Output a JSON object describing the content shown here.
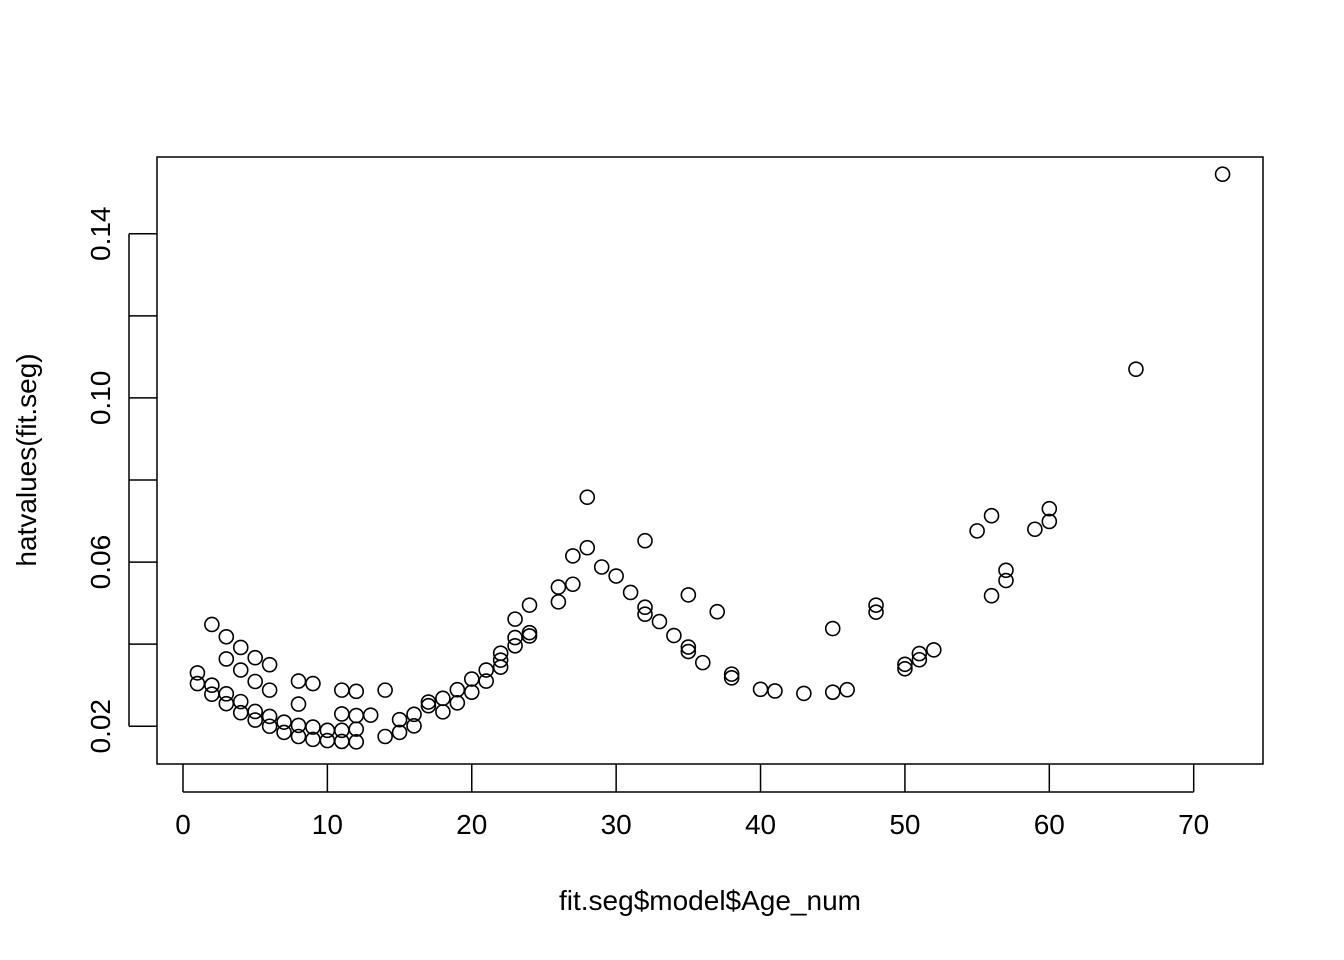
{
  "chart_data": {
    "type": "scatter",
    "title": "",
    "xlabel": "fit.seg$model$Age_num",
    "ylabel": "hatvalues(fit.seg)",
    "xlim": [
      -1.8,
      74.8
    ],
    "ylim": [
      0.0108,
      0.1587
    ],
    "x_ticks": [
      0,
      10,
      20,
      30,
      40,
      50,
      60,
      70
    ],
    "x_tick_labels": [
      "0",
      "10",
      "20",
      "30",
      "40",
      "50",
      "60",
      "70"
    ],
    "y_ticks": [
      0.02,
      0.04,
      0.06,
      0.08,
      0.1,
      0.12,
      0.14
    ],
    "y_tick_labels": [
      "0.02",
      "",
      "0.06",
      "",
      "0.10",
      "",
      "0.14"
    ],
    "grid": false,
    "legend": "none",
    "marker": "open-circle",
    "points": [
      [
        1,
        0.033
      ],
      [
        1,
        0.0304
      ],
      [
        2,
        0.0448
      ],
      [
        2,
        0.03
      ],
      [
        2,
        0.0278
      ],
      [
        3,
        0.0418
      ],
      [
        3,
        0.0364
      ],
      [
        3,
        0.0279
      ],
      [
        3,
        0.0255
      ],
      [
        4,
        0.0392
      ],
      [
        4,
        0.0337
      ],
      [
        4,
        0.026
      ],
      [
        4,
        0.0233
      ],
      [
        5,
        0.0367
      ],
      [
        5,
        0.0309
      ],
      [
        5,
        0.0236
      ],
      [
        5,
        0.0215
      ],
      [
        6,
        0.035
      ],
      [
        6,
        0.0288
      ],
      [
        6,
        0.0224
      ],
      [
        6,
        0.02
      ],
      [
        7,
        0.021
      ],
      [
        7,
        0.0185
      ],
      [
        8,
        0.031
      ],
      [
        8,
        0.0254
      ],
      [
        8,
        0.0202
      ],
      [
        8,
        0.0175
      ],
      [
        9,
        0.0304
      ],
      [
        9,
        0.0198
      ],
      [
        9,
        0.0168
      ],
      [
        10,
        0.019
      ],
      [
        10,
        0.0165
      ],
      [
        11,
        0.0288
      ],
      [
        11,
        0.023
      ],
      [
        11,
        0.019
      ],
      [
        11,
        0.0163
      ],
      [
        12,
        0.0285
      ],
      [
        12,
        0.0226
      ],
      [
        12,
        0.0193
      ],
      [
        12,
        0.0162
      ],
      [
        13,
        0.0227
      ],
      [
        14,
        0.0288
      ],
      [
        14,
        0.0175
      ],
      [
        15,
        0.0216
      ],
      [
        15,
        0.0185
      ],
      [
        16,
        0.0229
      ],
      [
        16,
        0.0201
      ],
      [
        17,
        0.0259
      ],
      [
        17,
        0.025
      ],
      [
        18,
        0.0268
      ],
      [
        18,
        0.0235
      ],
      [
        19,
        0.0289
      ],
      [
        19,
        0.0257
      ],
      [
        20,
        0.0315
      ],
      [
        20,
        0.0283
      ],
      [
        21,
        0.0337
      ],
      [
        21,
        0.031
      ],
      [
        22,
        0.0378
      ],
      [
        22,
        0.0361
      ],
      [
        22,
        0.0344
      ],
      [
        23,
        0.0461
      ],
      [
        23,
        0.0416
      ],
      [
        23,
        0.0396
      ],
      [
        24,
        0.0495
      ],
      [
        24,
        0.0428
      ],
      [
        24,
        0.042
      ],
      [
        26,
        0.0539
      ],
      [
        26,
        0.0503
      ],
      [
        27,
        0.0615
      ],
      [
        27,
        0.0546
      ],
      [
        28,
        0.0758
      ],
      [
        28,
        0.0635
      ],
      [
        29,
        0.0588
      ],
      [
        30,
        0.0566
      ],
      [
        31,
        0.0526
      ],
      [
        32,
        0.0652
      ],
      [
        32,
        0.049
      ],
      [
        32,
        0.0473
      ],
      [
        33,
        0.0455
      ],
      [
        34,
        0.0421
      ],
      [
        35,
        0.052
      ],
      [
        35,
        0.0393
      ],
      [
        35,
        0.0382
      ],
      [
        36,
        0.0355
      ],
      [
        37,
        0.0479
      ],
      [
        38,
        0.0327
      ],
      [
        38,
        0.0318
      ],
      [
        40,
        0.029
      ],
      [
        41,
        0.0286
      ],
      [
        43,
        0.028
      ],
      [
        45,
        0.0438
      ],
      [
        45,
        0.0283
      ],
      [
        46,
        0.0289
      ],
      [
        48,
        0.0495
      ],
      [
        48,
        0.0478
      ],
      [
        50,
        0.0351
      ],
      [
        50,
        0.034
      ],
      [
        51,
        0.0377
      ],
      [
        51,
        0.0362
      ],
      [
        52,
        0.0386
      ],
      [
        55,
        0.0676
      ],
      [
        56,
        0.0713
      ],
      [
        56,
        0.0518
      ],
      [
        57,
        0.058
      ],
      [
        57,
        0.0555
      ],
      [
        59,
        0.068
      ],
      [
        60,
        0.073
      ],
      [
        60,
        0.0699
      ],
      [
        66,
        0.107
      ],
      [
        72,
        0.1545
      ]
    ]
  }
}
